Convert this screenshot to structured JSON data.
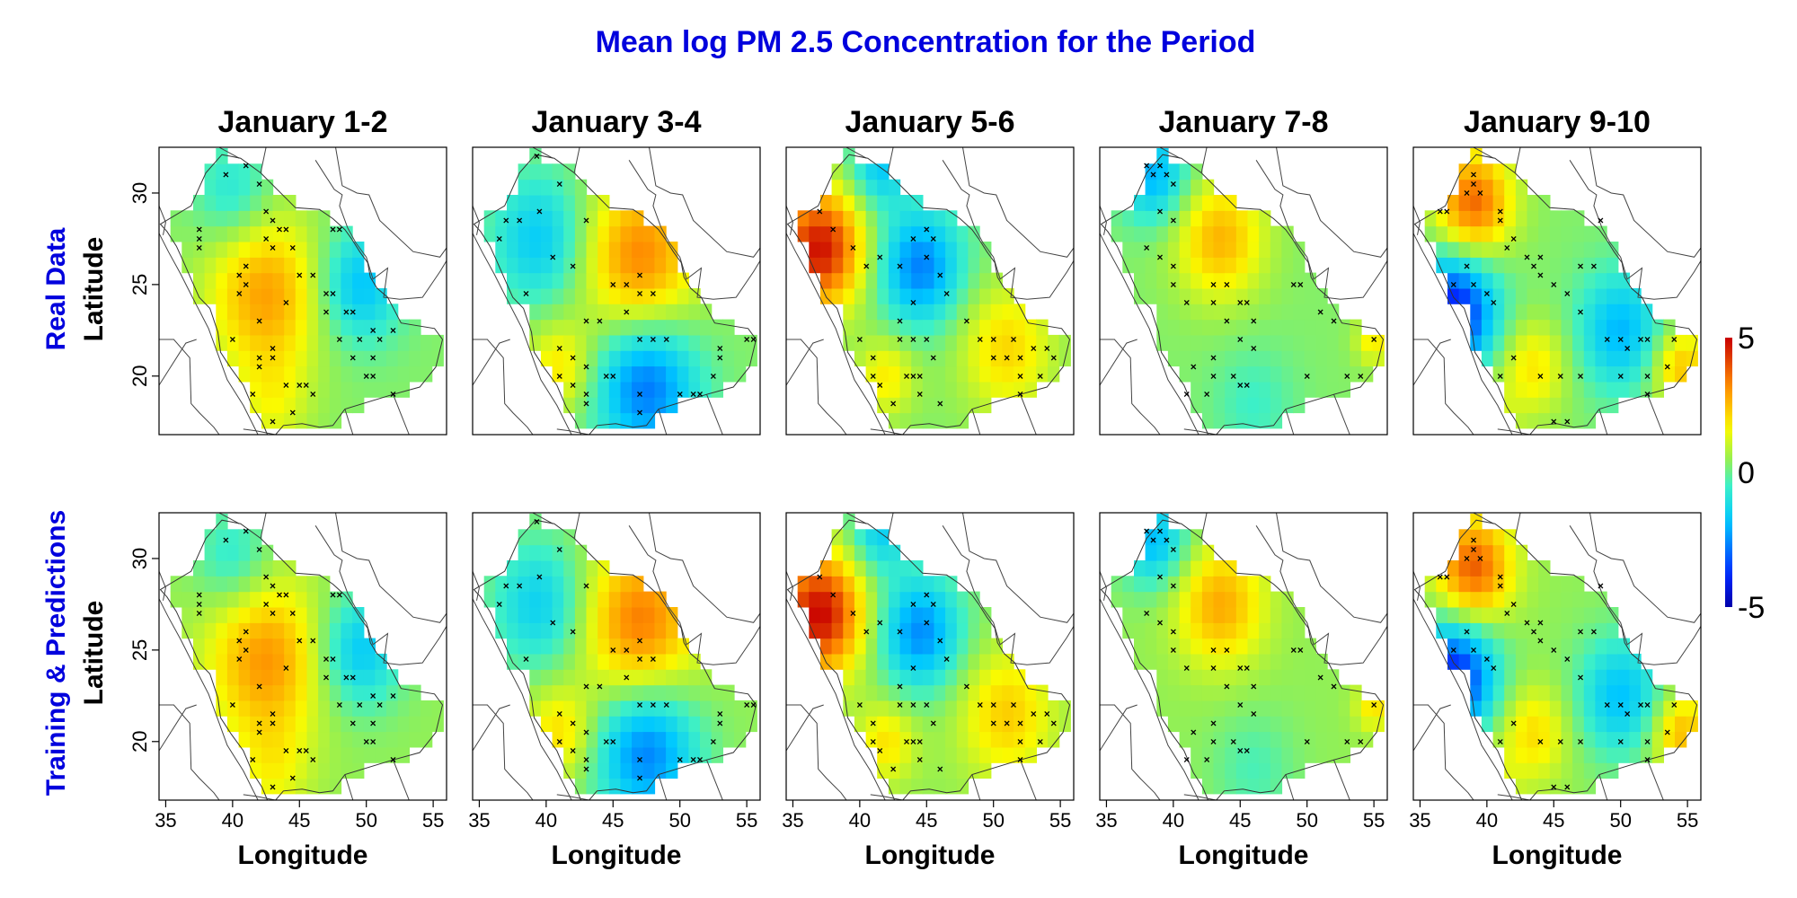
{
  "chart_data": {
    "type": "heatmap",
    "title": "Mean log PM 2.5 Concentration for the Period",
    "title_color": "#0000dd",
    "row_labels": [
      {
        "name": "Real Data",
        "axis": "Latitude"
      },
      {
        "name": "Training & Predictions",
        "axis": "Latitude"
      }
    ],
    "xlabel": "Longitude",
    "ylabel": "Latitude",
    "xlim": [
      34.5,
      56.0
    ],
    "ylim": [
      16.8,
      32.5
    ],
    "x_ticks": [
      35,
      40,
      45,
      50,
      55
    ],
    "y_ticks": [
      20,
      25,
      30
    ],
    "grid": false,
    "colorbar": {
      "min": -5,
      "max": 5,
      "ticks": [
        "5",
        "0",
        "-5"
      ],
      "colormap": "jet-like (blue → cyan → green → yellow → red)"
    },
    "periods": [
      {
        "title": "January 1-2",
        "hotspots": [
          {
            "lon": 42.5,
            "lat": 24.5,
            "value": 2.6,
            "spread": 3.0
          },
          {
            "lon": 49.5,
            "lat": 25.0,
            "value": -2.2,
            "spread": 2.2
          },
          {
            "lon": 40.0,
            "lat": 30.0,
            "value": -1.3,
            "spread": 2.0
          },
          {
            "lon": 43.0,
            "lat": 18.5,
            "value": 1.0,
            "spread": 2.0
          }
        ],
        "stations": [
          [
            39.5,
            31.0
          ],
          [
            41,
            31.5
          ],
          [
            37.5,
            28
          ],
          [
            37.5,
            27.5
          ],
          [
            37.5,
            27
          ],
          [
            42,
            30.5
          ],
          [
            42.5,
            29
          ],
          [
            43,
            28.5
          ],
          [
            43.5,
            28
          ],
          [
            44,
            28
          ],
          [
            42.5,
            27.5
          ],
          [
            44.5,
            27
          ],
          [
            43,
            27
          ],
          [
            41,
            26
          ],
          [
            40.5,
            25.5
          ],
          [
            41,
            25
          ],
          [
            40.5,
            24.5
          ],
          [
            42,
            23
          ],
          [
            44,
            24
          ],
          [
            45,
            25.5
          ],
          [
            46,
            25.5
          ],
          [
            47.5,
            28
          ],
          [
            48,
            28
          ],
          [
            47,
            24.5
          ],
          [
            47.5,
            24.5
          ],
          [
            47,
            23.5
          ],
          [
            48.5,
            23.5
          ],
          [
            49,
            23.5
          ],
          [
            48,
            22
          ],
          [
            49.5,
            22
          ],
          [
            50.5,
            22.5
          ],
          [
            51,
            22
          ],
          [
            52,
            22.5
          ],
          [
            50.5,
            21
          ],
          [
            50,
            20
          ],
          [
            50.5,
            20
          ],
          [
            49,
            21
          ],
          [
            52,
            19
          ],
          [
            40,
            22
          ],
          [
            42,
            21
          ],
          [
            42,
            20.5
          ],
          [
            41.5,
            19
          ],
          [
            43,
            21.5
          ],
          [
            43,
            21
          ],
          [
            44,
            19.5
          ],
          [
            45,
            19.5
          ],
          [
            45.5,
            19.5
          ],
          [
            46,
            19
          ],
          [
            44.5,
            18
          ],
          [
            43,
            17.5
          ]
        ]
      },
      {
        "title": "January 3-4",
        "hotspots": [
          {
            "lon": 47.0,
            "lat": 26.5,
            "value": 3.0,
            "spread": 3.0
          },
          {
            "lon": 39.5,
            "lat": 27.5,
            "value": -2.0,
            "spread": 2.5
          },
          {
            "lon": 47.5,
            "lat": 19.5,
            "value": -3.2,
            "spread": 2.7
          },
          {
            "lon": 41.0,
            "lat": 20.5,
            "value": 1.6,
            "spread": 1.8
          }
        ],
        "stations": [
          [
            39.3,
            32
          ],
          [
            41,
            30.5
          ],
          [
            37,
            28.5
          ],
          [
            36.5,
            27.5
          ],
          [
            38,
            28.5
          ],
          [
            39.5,
            29
          ],
          [
            43,
            28.5
          ],
          [
            40.5,
            26.5
          ],
          [
            42,
            26
          ],
          [
            38.5,
            24.5
          ],
          [
            45,
            25
          ],
          [
            46,
            25
          ],
          [
            47,
            25.5
          ],
          [
            47,
            24.5
          ],
          [
            48,
            24.5
          ],
          [
            46,
            23.5
          ],
          [
            43,
            23
          ],
          [
            44,
            23
          ],
          [
            48,
            22
          ],
          [
            49,
            22
          ],
          [
            47,
            22
          ],
          [
            42,
            21
          ],
          [
            41,
            20
          ],
          [
            42,
            19.5
          ],
          [
            43,
            20.5
          ],
          [
            44.5,
            20
          ],
          [
            45,
            20
          ],
          [
            47,
            19
          ],
          [
            50,
            19
          ],
          [
            51,
            19
          ],
          [
            51.5,
            19
          ],
          [
            52.5,
            20
          ],
          [
            53,
            21
          ],
          [
            53,
            21.5
          ],
          [
            55.5,
            22
          ],
          [
            55,
            22
          ],
          [
            43,
            18.5
          ],
          [
            47,
            18
          ],
          [
            43,
            19
          ],
          [
            41,
            21.5
          ]
        ]
      },
      {
        "title": "January 5-6",
        "hotspots": [
          {
            "lon": 37.0,
            "lat": 27.0,
            "value": 4.5,
            "spread": 2.3
          },
          {
            "lon": 44.5,
            "lat": 26.0,
            "value": -3.0,
            "spread": 2.2
          },
          {
            "lon": 51.0,
            "lat": 21.5,
            "value": 1.8,
            "spread": 2.4
          },
          {
            "lon": 41.5,
            "lat": 31.5,
            "value": -2.0,
            "spread": 1.6
          },
          {
            "lon": 42.0,
            "lat": 20.0,
            "value": 1.5,
            "spread": 1.5
          }
        ],
        "stations": [
          [
            37,
            29
          ],
          [
            38,
            28
          ],
          [
            39.5,
            27
          ],
          [
            40.5,
            26
          ],
          [
            41.5,
            26.5
          ],
          [
            43,
            26
          ],
          [
            44,
            27.5
          ],
          [
            45.5,
            27.5
          ],
          [
            45,
            28
          ],
          [
            45,
            26.5
          ],
          [
            46,
            25.5
          ],
          [
            46.5,
            24.5
          ],
          [
            44,
            24
          ],
          [
            43,
            23
          ],
          [
            48,
            23
          ],
          [
            49,
            22
          ],
          [
            50,
            22
          ],
          [
            50,
            21
          ],
          [
            51,
            21
          ],
          [
            52,
            21
          ],
          [
            51.5,
            22
          ],
          [
            53,
            21.5
          ],
          [
            54,
            21.5
          ],
          [
            54.5,
            21
          ],
          [
            52,
            20
          ],
          [
            53.5,
            20
          ],
          [
            52,
            19
          ],
          [
            40,
            22
          ],
          [
            41,
            21
          ],
          [
            41,
            20
          ],
          [
            41.5,
            19.5
          ],
          [
            42.5,
            18.5
          ],
          [
            43.5,
            20
          ],
          [
            44,
            20
          ],
          [
            44.5,
            20
          ],
          [
            44.5,
            19
          ],
          [
            46,
            18.5
          ],
          [
            43,
            22
          ],
          [
            44,
            22
          ],
          [
            45,
            22
          ],
          [
            45.5,
            21
          ]
        ]
      },
      {
        "title": "January 7-8",
        "hotspots": [
          {
            "lon": 43.5,
            "lat": 27.5,
            "value": 2.3,
            "spread": 2.3
          },
          {
            "lon": 38.5,
            "lat": 31.0,
            "value": -2.4,
            "spread": 1.8
          },
          {
            "lon": 46.0,
            "lat": 18.5,
            "value": -0.8,
            "spread": 2.2
          },
          {
            "lon": 55.0,
            "lat": 22.0,
            "value": 1.5,
            "spread": 1.0
          }
        ],
        "stations": [
          [
            38,
            31.5
          ],
          [
            39,
            31.5
          ],
          [
            39.5,
            31
          ],
          [
            38.5,
            31
          ],
          [
            40,
            30.5
          ],
          [
            39,
            29
          ],
          [
            40,
            28.5
          ],
          [
            38,
            27
          ],
          [
            39,
            26.5
          ],
          [
            40,
            26
          ],
          [
            40,
            25
          ],
          [
            41,
            24
          ],
          [
            43,
            25
          ],
          [
            44,
            25
          ],
          [
            45,
            24
          ],
          [
            45.5,
            24
          ],
          [
            43,
            24
          ],
          [
            46,
            23
          ],
          [
            44,
            23
          ],
          [
            49,
            25
          ],
          [
            49.5,
            25
          ],
          [
            51,
            23.5
          ],
          [
            52,
            23
          ],
          [
            45,
            22
          ],
          [
            46,
            21.5
          ],
          [
            43,
            21
          ],
          [
            43,
            20
          ],
          [
            44.5,
            20
          ],
          [
            45,
            19.5
          ],
          [
            45.5,
            19.5
          ],
          [
            41.5,
            20.5
          ],
          [
            41,
            19
          ],
          [
            42.5,
            19
          ],
          [
            50,
            20
          ],
          [
            53,
            20
          ],
          [
            54,
            20
          ],
          [
            55,
            22
          ]
        ]
      },
      {
        "title": "January 9-10",
        "hotspots": [
          {
            "lon": 39.0,
            "lat": 29.5,
            "value": 3.4,
            "spread": 2.0
          },
          {
            "lon": 37.5,
            "lat": 23.5,
            "value": -4.5,
            "spread": 2.2
          },
          {
            "lon": 50.0,
            "lat": 22.5,
            "value": -2.3,
            "spread": 2.3
          },
          {
            "lon": 54.5,
            "lat": 20.5,
            "value": 2.2,
            "spread": 1.6
          },
          {
            "lon": 43.5,
            "lat": 20.5,
            "value": 1.6,
            "spread": 1.8
          },
          {
            "lon": 40.0,
            "lat": 17.5,
            "value": 1.0,
            "spread": 1.5
          }
        ],
        "stations": [
          [
            39,
            31
          ],
          [
            38.5,
            30
          ],
          [
            39,
            30.5
          ],
          [
            39.5,
            30
          ],
          [
            37,
            29
          ],
          [
            36.5,
            29
          ],
          [
            41,
            29
          ],
          [
            41,
            28.5
          ],
          [
            42,
            27.5
          ],
          [
            41.5,
            27
          ],
          [
            43,
            26.5
          ],
          [
            44,
            26.5
          ],
          [
            43.5,
            26
          ],
          [
            44,
            25.5
          ],
          [
            38.5,
            26
          ],
          [
            37.5,
            25
          ],
          [
            39,
            25
          ],
          [
            40,
            24.5
          ],
          [
            40.5,
            24
          ],
          [
            45,
            25
          ],
          [
            47,
            26
          ],
          [
            46,
            24.5
          ],
          [
            47,
            23.5
          ],
          [
            48,
            26
          ],
          [
            48.5,
            28.5
          ],
          [
            50.5,
            21.5
          ],
          [
            51.5,
            22
          ],
          [
            52,
            22
          ],
          [
            50,
            22
          ],
          [
            49,
            22
          ],
          [
            47,
            20
          ],
          [
            42,
            21
          ],
          [
            41,
            20
          ],
          [
            44,
            20
          ],
          [
            45.5,
            20
          ],
          [
            50,
            20
          ],
          [
            52,
            20
          ],
          [
            53.5,
            20.5
          ],
          [
            54,
            22
          ],
          [
            52,
            19
          ],
          [
            45,
            17.5
          ],
          [
            46,
            17.5
          ]
        ]
      }
    ],
    "prediction_offset": 0.15
  }
}
